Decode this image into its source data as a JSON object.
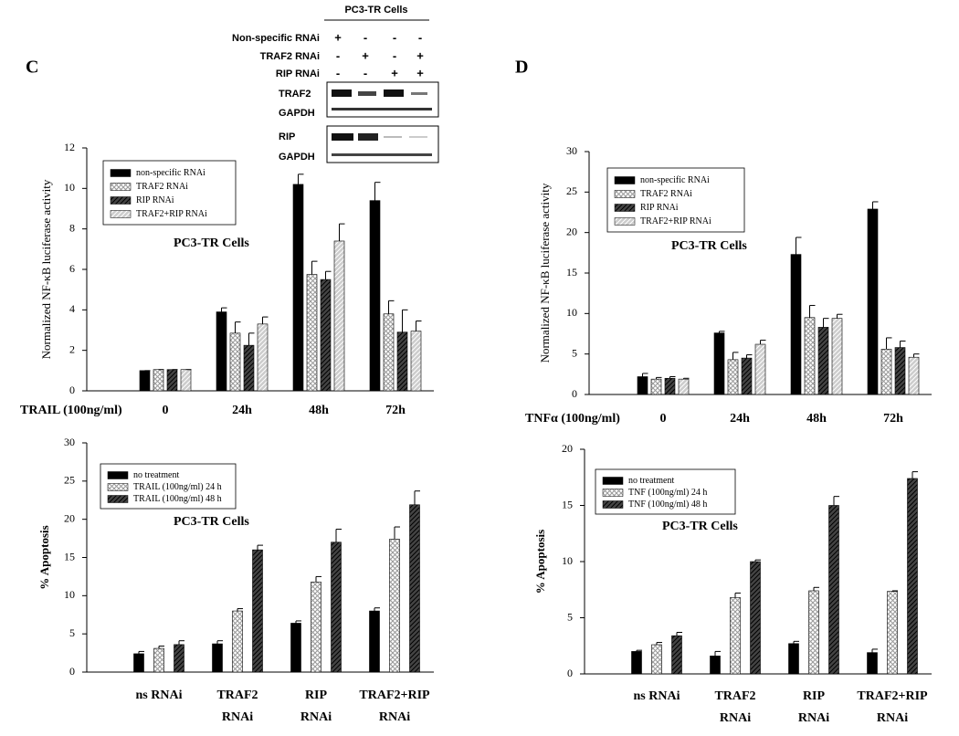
{
  "panel_labels": [
    "C",
    "D"
  ],
  "blot": {
    "title": "PC3-TR Cells",
    "rows": [
      {
        "label": "Non-specific RNAi",
        "signs": [
          "+",
          "-",
          "-",
          "-"
        ]
      },
      {
        "label": "TRAF2 RNAi",
        "signs": [
          "-",
          "+",
          "-",
          "+"
        ]
      },
      {
        "label": "RIP RNAi",
        "signs": [
          "-",
          "-",
          "+",
          "+"
        ]
      }
    ],
    "panels": [
      [
        "TRAF2",
        "GAPDH"
      ],
      [
        "RIP",
        "GAPDH"
      ]
    ]
  },
  "chart_data": [
    {
      "type": "bar",
      "ylabel": "Normalized NF-κB luciferase activity",
      "xlabel": "TRAIL (100ng/ml)",
      "annotation": "PC3-TR Cells",
      "categories": [
        [
          "0"
        ],
        [
          "24h"
        ],
        [
          "48h"
        ],
        [
          "72h"
        ]
      ],
      "ylim": [
        0,
        12
      ],
      "yticks": [
        0,
        2,
        4,
        6,
        8,
        10,
        12
      ],
      "series": [
        {
          "name": "non-specific RNAi",
          "color": "#000000",
          "pattern": "solid",
          "values": [
            1.0,
            3.9,
            10.2,
            9.4
          ],
          "errors": [
            0,
            0.2,
            0.5,
            0.9
          ]
        },
        {
          "name": "TRAF2 RNAi",
          "color": "#999999",
          "pattern": "crosshatch",
          "values": [
            1.05,
            2.85,
            5.75,
            3.8
          ],
          "errors": [
            0,
            0.55,
            0.65,
            0.65
          ]
        },
        {
          "name": "RIP RNAi",
          "color": "#444444",
          "pattern": "diagonal",
          "values": [
            1.05,
            2.25,
            5.5,
            2.9
          ],
          "errors": [
            0,
            0.6,
            0.4,
            1.1
          ]
        },
        {
          "name": "TRAF2+RIP RNAi",
          "color": "#cccccc",
          "pattern": "diagonal",
          "values": [
            1.05,
            3.3,
            7.4,
            2.95
          ],
          "errors": [
            0,
            0.35,
            0.85,
            0.5
          ]
        }
      ]
    },
    {
      "type": "bar",
      "ylabel": "Normalized NF-κB luciferase activity",
      "xlabel": "TNFα (100ng/ml)",
      "annotation": "PC3-TR Cells",
      "categories": [
        [
          "0"
        ],
        [
          "24h"
        ],
        [
          "48h"
        ],
        [
          "72h"
        ]
      ],
      "ylim": [
        0,
        30
      ],
      "yticks": [
        0,
        5,
        10,
        15,
        20,
        25,
        30
      ],
      "series": [
        {
          "name": "non-specific RNAi",
          "color": "#000000",
          "pattern": "solid",
          "values": [
            2.2,
            7.6,
            17.3,
            22.9
          ],
          "errors": [
            0.4,
            0.2,
            2.1,
            0.9
          ]
        },
        {
          "name": "TRAF2 RNAi",
          "color": "#999999",
          "pattern": "crosshatch",
          "values": [
            1.9,
            4.3,
            9.5,
            5.6
          ],
          "errors": [
            0.2,
            0.9,
            1.5,
            1.4
          ]
        },
        {
          "name": "RIP RNAi",
          "color": "#444444",
          "pattern": "diagonal",
          "values": [
            2.0,
            4.5,
            8.3,
            5.8
          ],
          "errors": [
            0.2,
            0.4,
            1.1,
            0.8
          ]
        },
        {
          "name": "TRAF2+RIP RNAi",
          "color": "#cccccc",
          "pattern": "diagonal",
          "values": [
            1.9,
            6.2,
            9.4,
            4.6
          ],
          "errors": [
            0.1,
            0.5,
            0.5,
            0.4
          ]
        }
      ]
    },
    {
      "type": "bar",
      "ylabel": "% Apoptosis",
      "annotation": "PC3-TR Cells",
      "categories": [
        [
          "ns RNAi"
        ],
        [
          "TRAF2",
          "RNAi"
        ],
        [
          "RIP",
          "RNAi"
        ],
        [
          "TRAF2+RIP",
          "RNAi"
        ]
      ],
      "ylim": [
        0,
        30
      ],
      "yticks": [
        0,
        5,
        10,
        15,
        20,
        25,
        30
      ],
      "series": [
        {
          "name": "no treatment",
          "color": "#000000",
          "pattern": "solid",
          "values": [
            2.4,
            3.7,
            6.4,
            8.0
          ],
          "errors": [
            0.3,
            0.4,
            0.3,
            0.4
          ]
        },
        {
          "name": "TRAIL (100ng/ml) 24 h",
          "color": "#999999",
          "pattern": "crosshatch",
          "values": [
            3.1,
            8.0,
            11.8,
            17.4
          ],
          "errors": [
            0.3,
            0.3,
            0.7,
            1.6
          ]
        },
        {
          "name": "TRAIL (100ng/ml) 48 h",
          "color": "#444444",
          "pattern": "diagonal",
          "values": [
            3.6,
            16.0,
            17.0,
            21.9
          ],
          "errors": [
            0.5,
            0.6,
            1.7,
            1.8
          ]
        }
      ]
    },
    {
      "type": "bar",
      "ylabel": "% Apoptosis",
      "annotation": "PC3-TR Cells",
      "categories": [
        [
          "ns RNAi"
        ],
        [
          "TRAF2",
          "RNAi"
        ],
        [
          "RIP",
          "RNAi"
        ],
        [
          "TRAF2+RIP",
          "RNAi"
        ]
      ],
      "ylim": [
        0,
        20
      ],
      "yticks": [
        0,
        5,
        10,
        15,
        20
      ],
      "series": [
        {
          "name": "no treatment",
          "color": "#000000",
          "pattern": "solid",
          "values": [
            2.0,
            1.6,
            2.7,
            1.9
          ],
          "errors": [
            0.1,
            0.4,
            0.2,
            0.3
          ]
        },
        {
          "name": "TNF (100ng/ml) 24 h",
          "color": "#999999",
          "pattern": "crosshatch",
          "values": [
            2.6,
            6.8,
            7.4,
            7.35
          ],
          "errors": [
            0.2,
            0.4,
            0.3,
            0.05
          ]
        },
        {
          "name": "TNF (100ng/ml) 48 h",
          "color": "#444444",
          "pattern": "diagonal",
          "values": [
            3.4,
            10.0,
            15.0,
            17.4
          ],
          "errors": [
            0.3,
            0.15,
            0.8,
            0.6
          ]
        }
      ]
    }
  ]
}
